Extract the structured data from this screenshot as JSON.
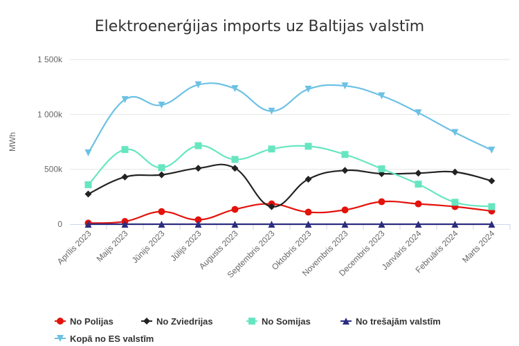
{
  "chart_data": {
    "type": "line",
    "title": "Elektroenerģijas imports uz Baltijas valstīm",
    "ylabel": "MWh",
    "xlabel": "",
    "ylim": [
      0,
      1500000
    ],
    "y_ticks": [
      0,
      500000,
      1000000,
      1500000
    ],
    "y_tick_labels": [
      "0",
      "500k",
      "1 000k",
      "1 500k"
    ],
    "grid": "horizontal",
    "legend_position": "bottom-left",
    "categories": [
      "Aprīlis 2023",
      "Maijs 2023",
      "Jūnijs 2023",
      "Jūlijs 2023",
      "Augusts 2023",
      "Septembris 2023",
      "Oktobris 2023",
      "Novembris 2023",
      "Decembris 2023",
      "Janvāris 2024",
      "Februāris 2024",
      "Marts 2024"
    ],
    "series": [
      {
        "name": "No Polijas",
        "color": "#e3120b",
        "marker": "circle",
        "values": [
          10000,
          25000,
          115000,
          40000,
          135000,
          185000,
          110000,
          130000,
          205000,
          185000,
          160000,
          120000
        ]
      },
      {
        "name": "No Zviedrijas",
        "color": "#222222",
        "marker": "diamond",
        "values": [
          275000,
          430000,
          450000,
          510000,
          510000,
          160000,
          410000,
          490000,
          460000,
          465000,
          475000,
          395000
        ]
      },
      {
        "name": "No Somijas",
        "color": "#66e6c0",
        "marker": "square",
        "values": [
          360000,
          680000,
          515000,
          715000,
          590000,
          685000,
          710000,
          635000,
          505000,
          365000,
          200000,
          160000
        ]
      },
      {
        "name": "No trešajām valstīm",
        "color": "#2b2d7e",
        "marker": "triangle",
        "values": [
          0,
          0,
          0,
          0,
          0,
          0,
          0,
          0,
          0,
          0,
          0,
          0
        ]
      },
      {
        "name": "Kopā no ES valstīm",
        "color": "#6cc1e4",
        "marker": "triangle-down",
        "values": [
          650000,
          1135000,
          1085000,
          1270000,
          1235000,
          1030000,
          1230000,
          1260000,
          1170000,
          1015000,
          835000,
          675000
        ]
      }
    ]
  }
}
